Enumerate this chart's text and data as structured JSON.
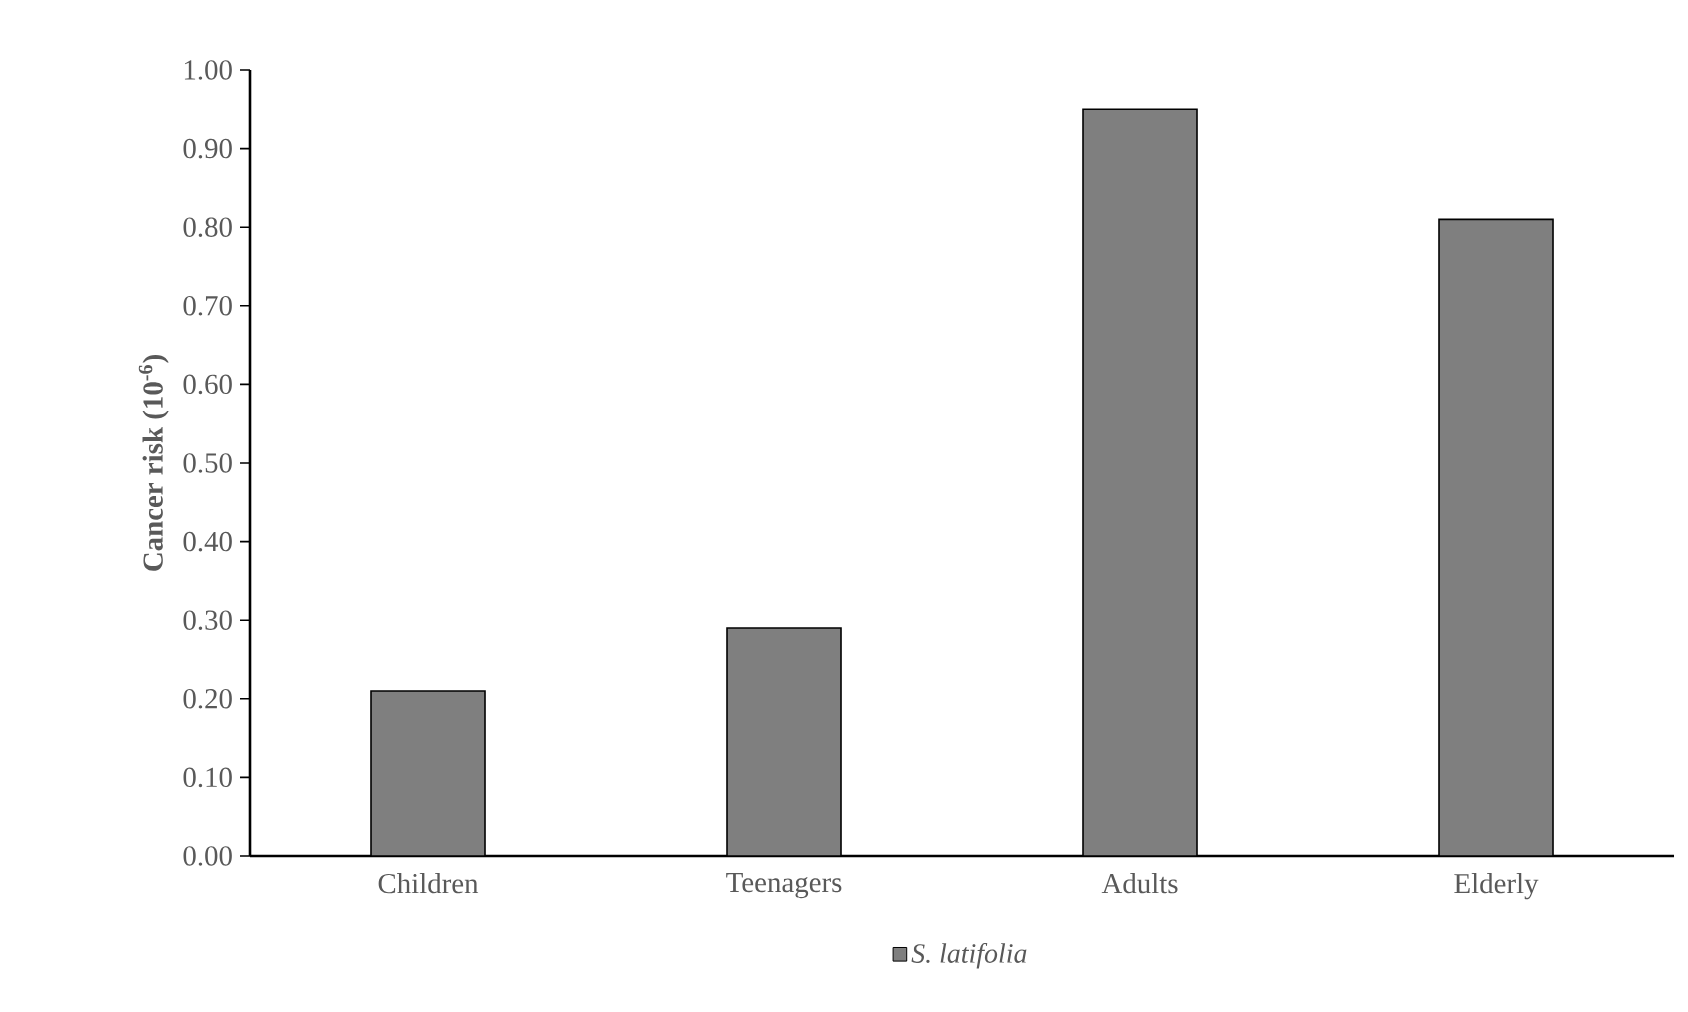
{
  "chart_data": {
    "type": "bar",
    "ylabel": "Cancer risk (10$^{-6}$)",
    "categories": [
      "Children",
      "Teenagers",
      "Adults",
      "Elderly"
    ],
    "series": [
      {
        "name": "S. latifolia",
        "color": "#7f7f7f",
        "values": [
          0.21,
          0.29,
          0.95,
          0.81
        ]
      }
    ],
    "ylim": [
      0,
      1
    ],
    "yticks": [
      {
        "value": 0,
        "label": "0.00"
      },
      {
        "value": 0.1,
        "label": "0.10"
      },
      {
        "value": 0.2,
        "label": "0.20"
      },
      {
        "value": 0.3,
        "label": "0.30"
      },
      {
        "value": 0.4,
        "label": "0.40"
      },
      {
        "value": 0.5,
        "label": "0.50"
      },
      {
        "value": 0.6,
        "label": "0.60"
      },
      {
        "value": 0.7,
        "label": "0.70"
      },
      {
        "value": 0.8,
        "label": "0.80"
      },
      {
        "value": 0.9,
        "label": "0.90"
      },
      {
        "value": 1,
        "label": "1.00"
      }
    ],
    "grid": false,
    "legend": "bottom"
  }
}
